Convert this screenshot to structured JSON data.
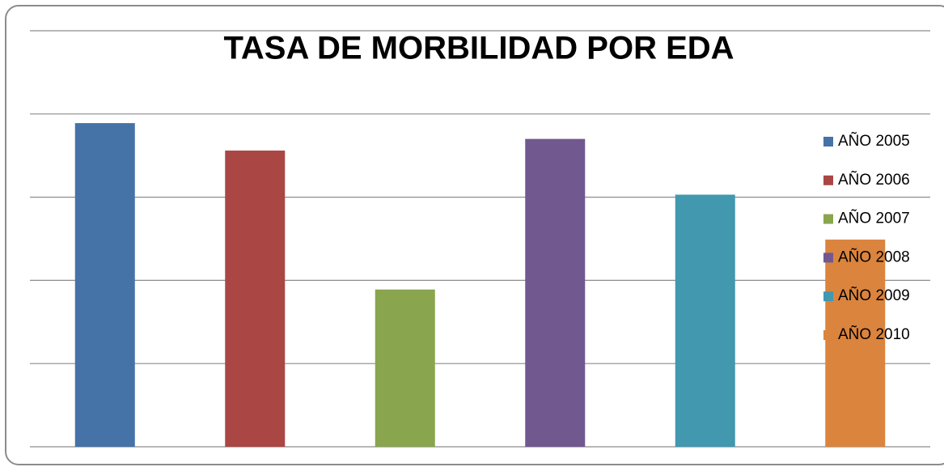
{
  "chart_data": {
    "type": "bar",
    "title": "TASA DE MORBILIDAD  POR EDA",
    "series": [
      {
        "name": "AÑO 2005",
        "color": "#4572a7",
        "values": [
          3.89
        ]
      },
      {
        "name": "AÑO 2006",
        "color": "#aa4643",
        "values": [
          3.56
        ]
      },
      {
        "name": "AÑO 2007",
        "color": "#89a54e",
        "values": [
          1.89
        ]
      },
      {
        "name": "AÑO 2008",
        "color": "#71588f",
        "values": [
          3.7
        ]
      },
      {
        "name": "AÑO 2009",
        "color": "#4198af",
        "values": [
          3.03
        ]
      },
      {
        "name": "AÑO 2010",
        "color": "#db843d",
        "values": [
          2.49
        ]
      }
    ],
    "ylim": [
      0,
      5
    ],
    "yticks": [
      0,
      1,
      2,
      3,
      4,
      5
    ],
    "grid": true,
    "legend": "right"
  }
}
